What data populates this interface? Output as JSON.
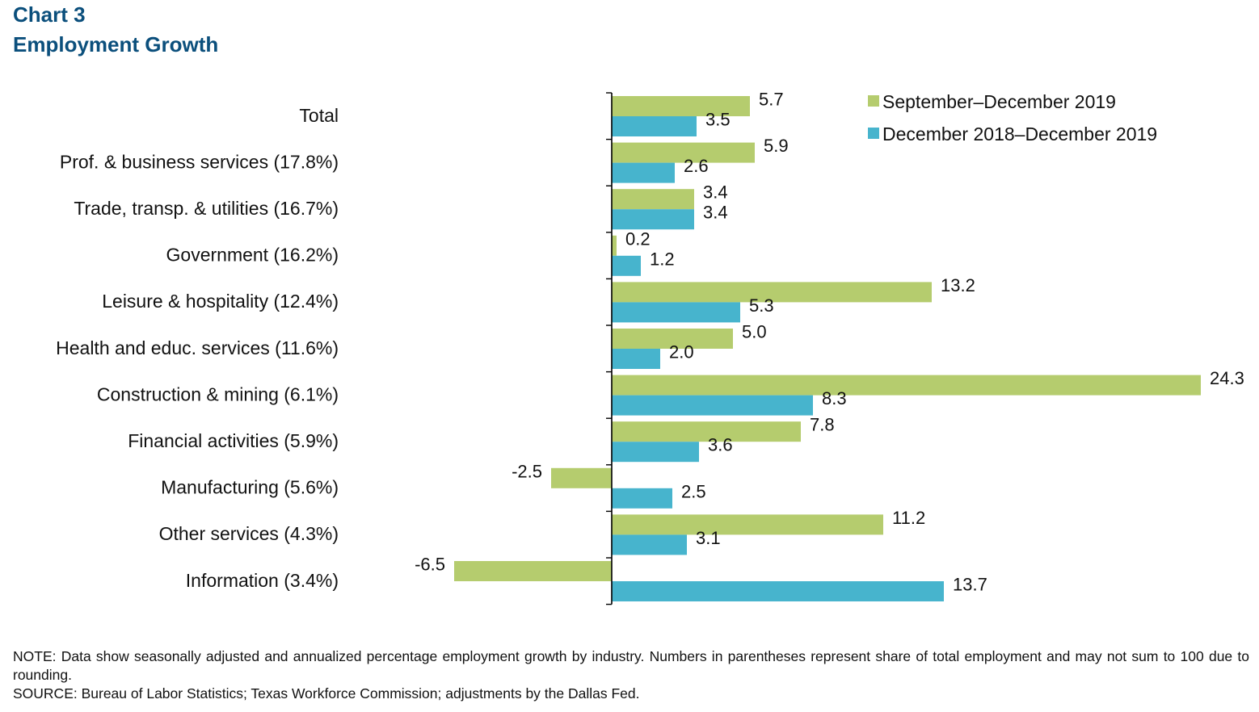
{
  "header": {
    "chart_label": "Chart 3",
    "title": "Employment Growth"
  },
  "colors": {
    "series1": "#b5cc6e",
    "series2": "#47b4cd",
    "title": "#0b4f7c",
    "axis": "#000000"
  },
  "chart_data": {
    "type": "bar",
    "orientation": "horizontal",
    "title": "Employment Growth",
    "xlabel": "",
    "ylabel": "",
    "xlim": [
      -6.5,
      24.3
    ],
    "grid": false,
    "legend_position": "top-right",
    "categories": [
      "Total",
      "Prof. & business services (17.8%)",
      "Trade, transp. & utilities (16.7%)",
      "Government (16.2%)",
      "Leisure & hospitality (12.4%)",
      "Health and educ. services (11.6%)",
      "Construction & mining (6.1%)",
      "Financial activities (5.9%)",
      "Manufacturing (5.6%)",
      "Other services (4.3%)",
      "Information (3.4%)"
    ],
    "series": [
      {
        "name": "September–December 2019",
        "values": [
          5.7,
          5.9,
          3.4,
          0.2,
          13.2,
          5.0,
          24.3,
          7.8,
          -2.5,
          11.2,
          -6.5
        ],
        "labels": [
          "5.7",
          "5.9",
          "3.4",
          "0.2",
          "13.2",
          "5.0",
          "24.3",
          "7.8",
          "-2.5",
          "11.2",
          "-6.5"
        ]
      },
      {
        "name": "December 2018–December 2019",
        "values": [
          3.5,
          2.6,
          3.4,
          1.2,
          5.3,
          2.0,
          8.3,
          3.6,
          2.5,
          3.1,
          13.7
        ],
        "labels": [
          "3.5",
          "2.6",
          "3.4",
          "1.2",
          "5.3",
          "2.0",
          "8.3",
          "3.6",
          "2.5",
          "3.1",
          "13.7"
        ]
      }
    ]
  },
  "footer": {
    "note": "NOTE: Data show seasonally adjusted and annualized percentage employment growth by industry. Numbers in parentheses represent share of total employment and may not sum to 100 due to rounding.",
    "source": "SOURCE: Bureau of Labor Statistics; Texas Workforce Commission; adjustments by the Dallas Fed."
  }
}
